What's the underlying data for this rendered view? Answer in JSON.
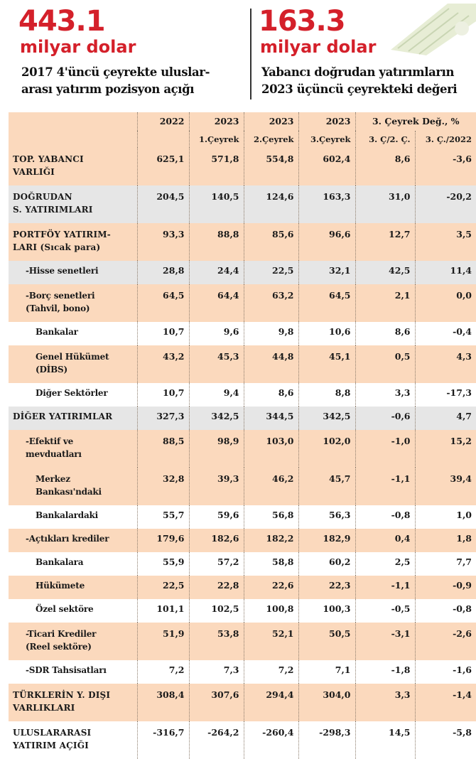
{
  "header": {
    "left": {
      "value": "443.1",
      "unit": "milyar dolar",
      "desc_line1": "2017 4'üncü çeyrekte uluslar-",
      "desc_line2": "arası yatırım pozisyon açığı"
    },
    "right": {
      "value": "163.3",
      "unit": "milyar dolar",
      "desc_line1": "Yabancı doğrudan yatırımların",
      "desc_line2": "2023 üçüncü çeyrekteki değeri"
    }
  },
  "colors": {
    "accent": "#d4202a",
    "peach": "#fbd9bd",
    "grey": "#e6e6e6"
  },
  "table": {
    "header_years": [
      "2022",
      "2023",
      "2023",
      "2023"
    ],
    "header_change": "3. Çeyrek Değ., %",
    "subheader": [
      "1.Çeyrek",
      "2.Çeyrek",
      "3.Çeyrek",
      "3. Ç/2. Ç.",
      "3. Ç./2022"
    ],
    "rows": [
      {
        "l1": "TOP. YABANCI",
        "l2": "VARLIĞI",
        "v": [
          "625,1",
          "571,8",
          "554,8",
          "602,4",
          "8,6",
          "-3,6"
        ]
      },
      {
        "l1": "DOĞRUDAN",
        "l2": "S. YATIRIMLARI",
        "v": [
          "204,5",
          "140,5",
          "124,6",
          "163,3",
          "31,0",
          "-20,2"
        ]
      },
      {
        "l1": "PORTFÖY YATIRIM-",
        "l2": "LARI (Sıcak para)",
        "v": [
          "93,3",
          "88,8",
          "85,6",
          "96,6",
          "12,7",
          "3,5"
        ]
      },
      {
        "l1": "-Hisse senetleri",
        "l2": "",
        "v": [
          "28,8",
          "24,4",
          "22,5",
          "32,1",
          "42,5",
          "11,4"
        ]
      },
      {
        "l1": "-Borç senetleri",
        "l2": "(Tahvil, bono)",
        "v": [
          "64,5",
          "64,4",
          "63,2",
          "64,5",
          "2,1",
          "0,0"
        ]
      },
      {
        "l1": "Bankalar",
        "l2": "",
        "v": [
          "10,7",
          "9,6",
          "9,8",
          "10,6",
          "8,6",
          "-0,4"
        ]
      },
      {
        "l1": "Genel Hükümet",
        "l2": "(DİBS)",
        "v": [
          "43,2",
          "45,3",
          "44,8",
          "45,1",
          "0,5",
          "4,3"
        ]
      },
      {
        "l1": "Diğer Sektörler",
        "l2": "",
        "v": [
          "10,7",
          "9,4",
          "8,6",
          "8,8",
          "3,3",
          "-17,3"
        ]
      },
      {
        "l1": "DİĞER YATIRIMLAR",
        "l2": "",
        "v": [
          "327,3",
          "342,5",
          "344,5",
          "342,5",
          "-0,6",
          "4,7"
        ]
      },
      {
        "l1": "-Efektif ve",
        "l2": "mevduatları",
        "v": [
          "88,5",
          "98,9",
          "103,0",
          "102,0",
          "-1,0",
          "15,2"
        ]
      },
      {
        "l1": "Merkez",
        "l2": "Bankası'ndaki",
        "v": [
          "32,8",
          "39,3",
          "46,2",
          "45,7",
          "-1,1",
          "39,4"
        ]
      },
      {
        "l1": "Bankalardaki",
        "l2": "",
        "v": [
          "55,7",
          "59,6",
          "56,8",
          "56,3",
          "-0,8",
          "1,0"
        ]
      },
      {
        "l1": "-Açtıkları krediler",
        "l2": "",
        "v": [
          "179,6",
          "182,6",
          "182,2",
          "182,9",
          "0,4",
          "1,8"
        ]
      },
      {
        "l1": "Bankalara",
        "l2": "",
        "v": [
          "55,9",
          "57,2",
          "58,8",
          "60,2",
          "2,5",
          "7,7"
        ]
      },
      {
        "l1": "Hükümete",
        "l2": "",
        "v": [
          "22,5",
          "22,8",
          "22,6",
          "22,3",
          "-1,1",
          "-0,9"
        ]
      },
      {
        "l1": "Özel sektöre",
        "l2": "",
        "v": [
          "101,1",
          "102,5",
          "100,8",
          "100,3",
          "-0,5",
          "-0,8"
        ]
      },
      {
        "l1": "-Ticari Krediler",
        "l2": "(Reel sektöre)",
        "v": [
          "51,9",
          "53,8",
          "52,1",
          "50,5",
          "-3,1",
          "-2,6"
        ]
      },
      {
        "l1": "-SDR Tahsisatları",
        "l2": "",
        "v": [
          "7,2",
          "7,3",
          "7,2",
          "7,1",
          "-1,8",
          "-1,6"
        ]
      },
      {
        "l1": "TÜRKLERİN Y. DIŞI",
        "l2": "VARLIKLARI",
        "v": [
          "308,4",
          "307,6",
          "294,4",
          "304,0",
          "3,3",
          "-1,4"
        ]
      },
      {
        "l1": "ULUSLARARASI",
        "l2": "YATIRIM AÇIĞI",
        "v": [
          "-316,7",
          "-264,2",
          "-260,4",
          "-298,3",
          "14,5",
          "-5,8"
        ]
      }
    ]
  }
}
